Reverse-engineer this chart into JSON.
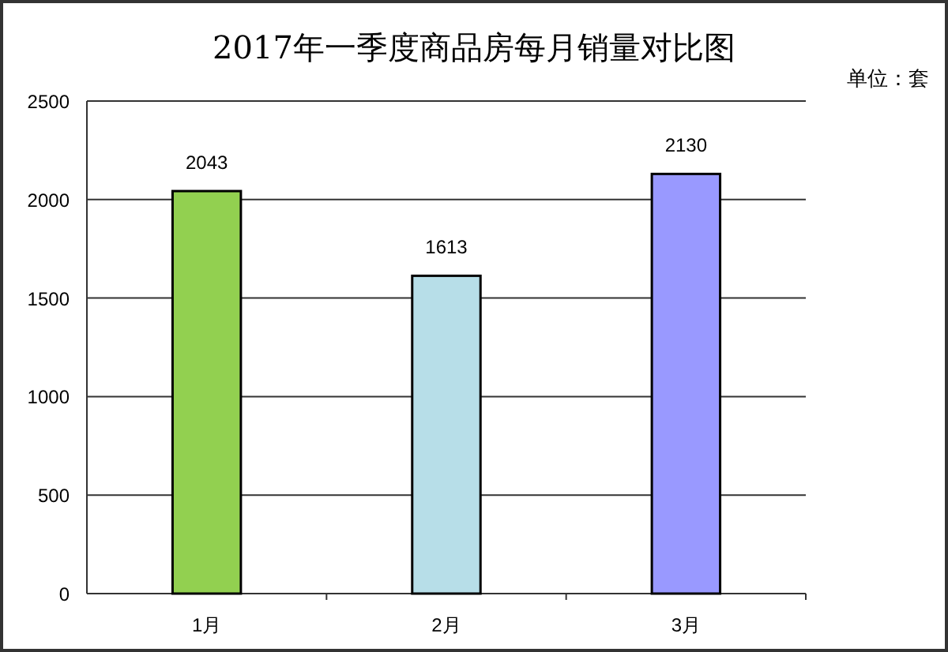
{
  "chart_data": {
    "type": "bar",
    "title": "2017年一季度商品房每月销量对比图",
    "annotations": [
      "单位：套"
    ],
    "categories": [
      "1月",
      "2月",
      "3月"
    ],
    "values": [
      2043,
      1613,
      2130
    ],
    "colors": [
      "#92d050",
      "#b7dee8",
      "#9999ff"
    ],
    "ylim": [
      0,
      2500
    ],
    "yticks": [
      0,
      500,
      1000,
      1500,
      2000,
      2500
    ],
    "grid": "y",
    "data_labels": true
  }
}
